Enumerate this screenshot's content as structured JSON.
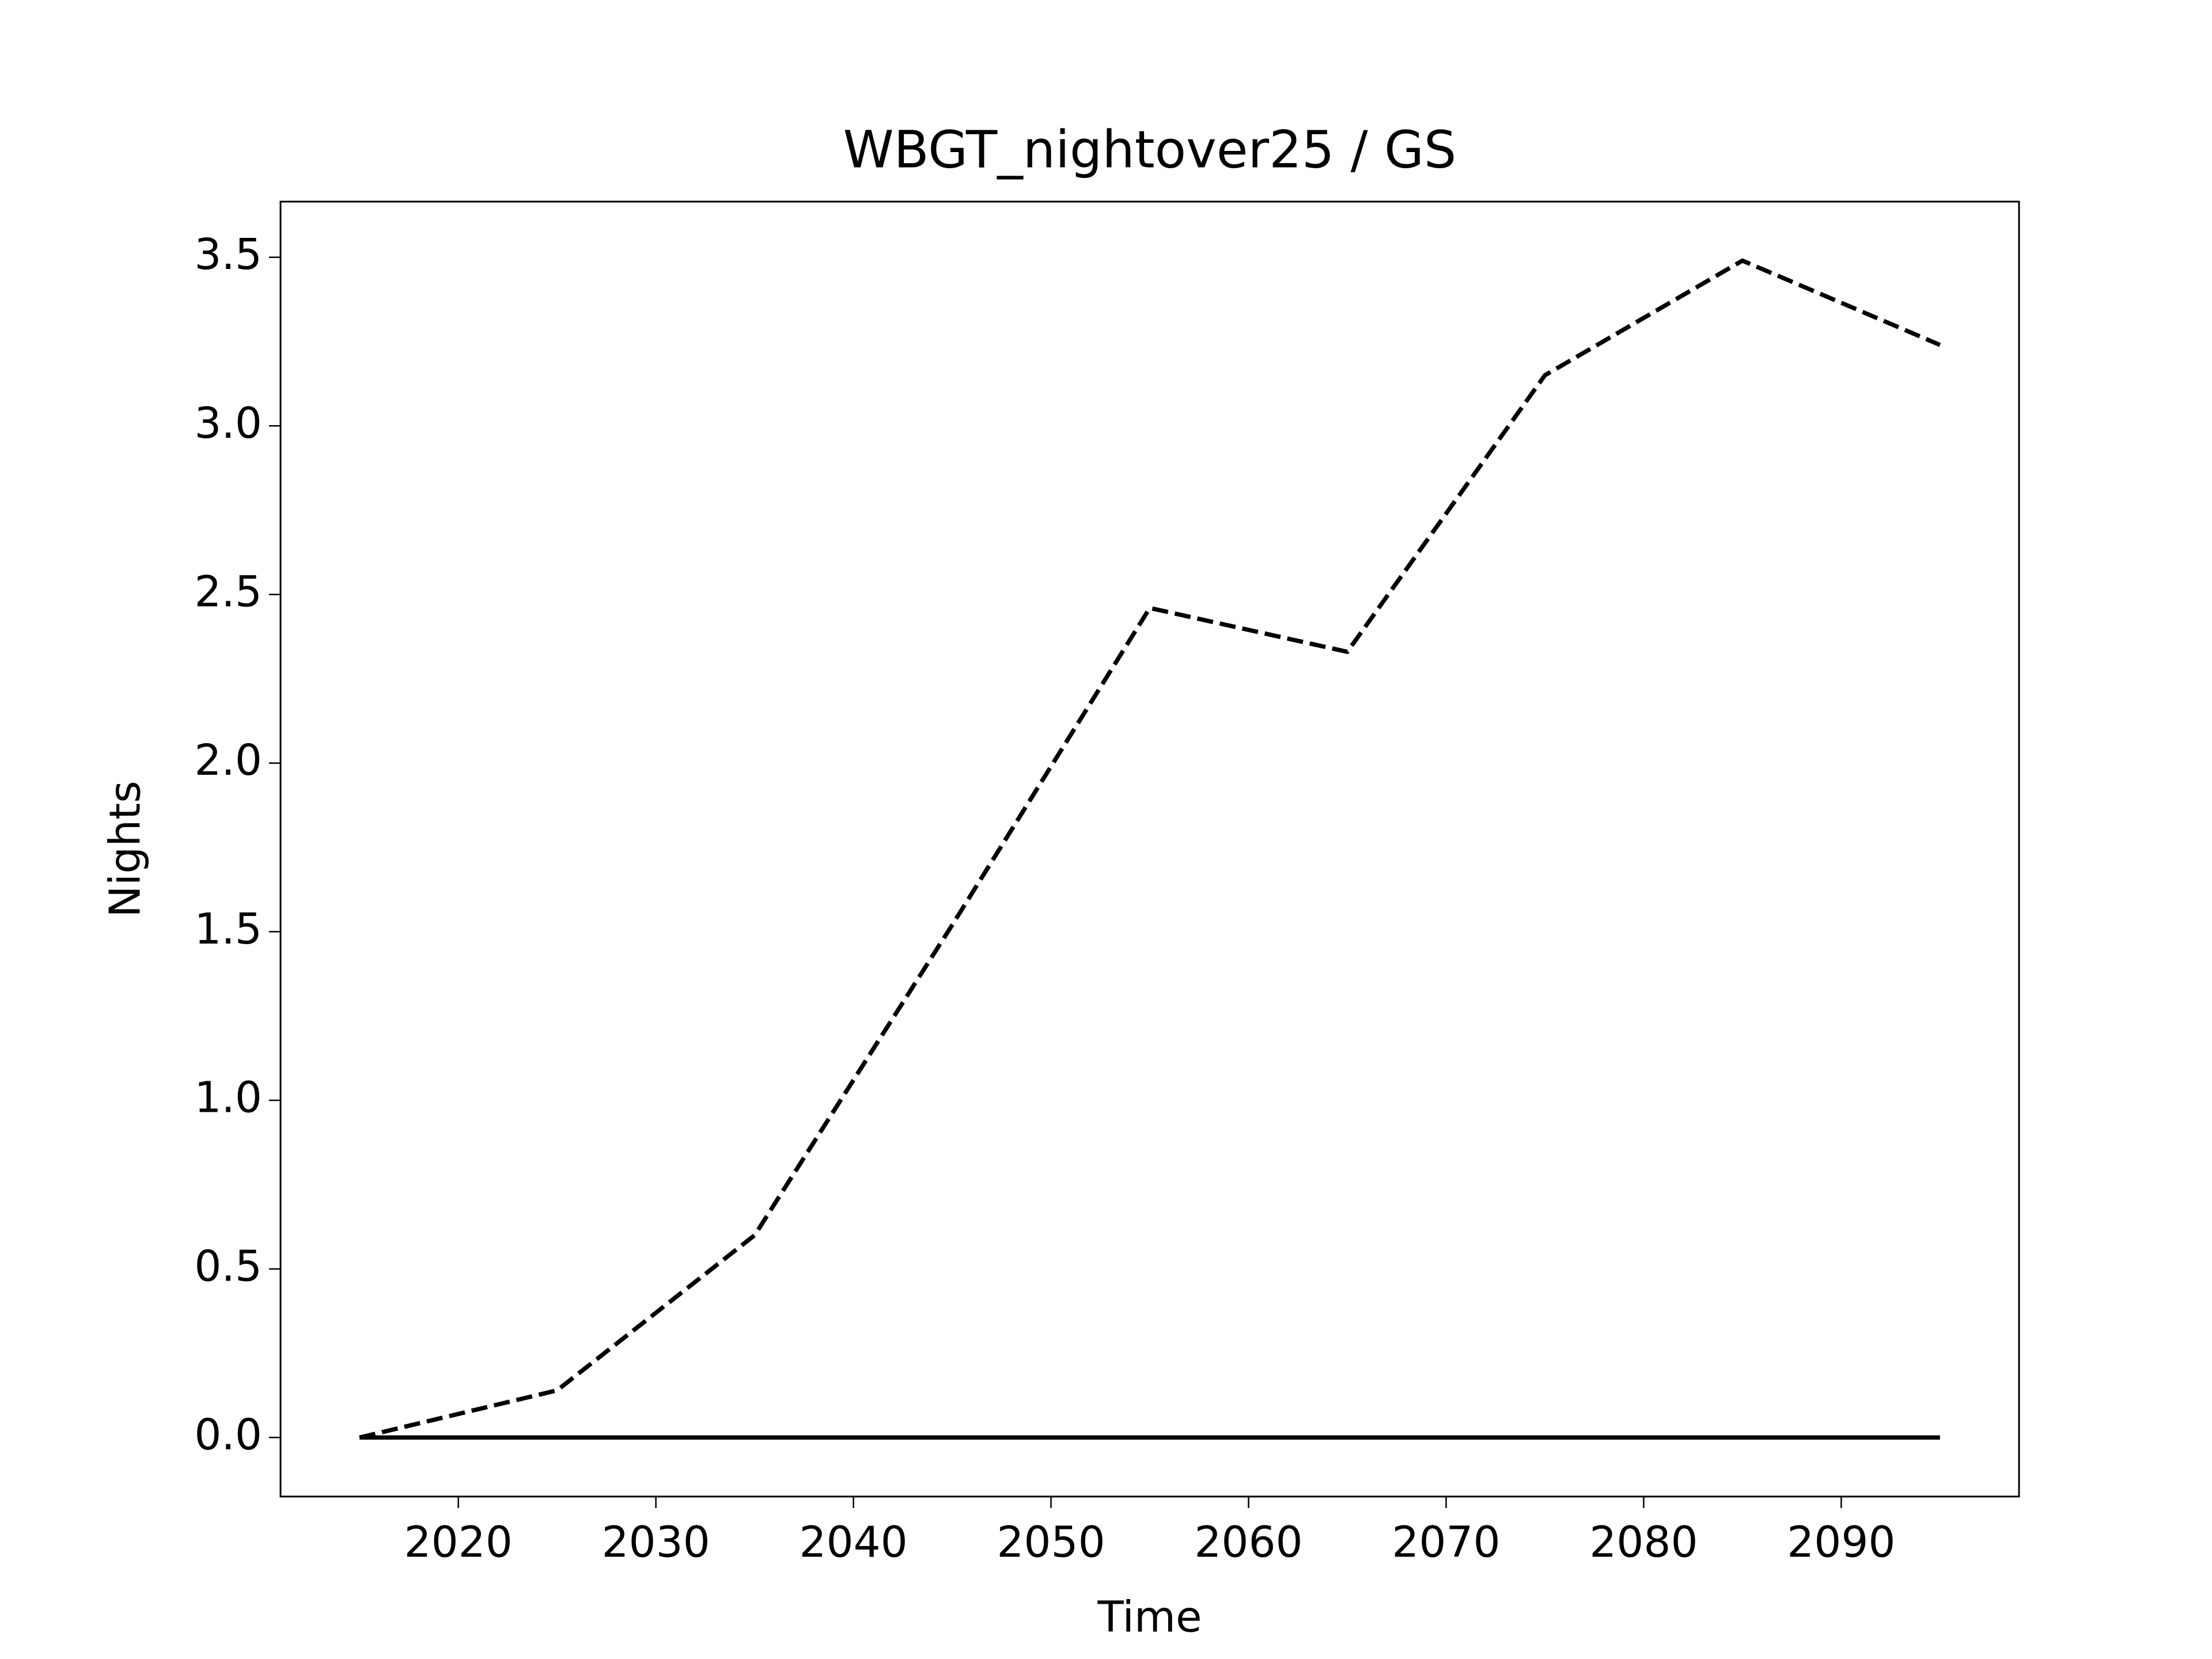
{
  "chart_data": {
    "type": "line",
    "title": "WBGT_nightover25 / GS",
    "xlabel": "Time",
    "ylabel": "Nights",
    "x": [
      2015,
      2025,
      2035,
      2045,
      2055,
      2065,
      2075,
      2085,
      2095
    ],
    "series": [
      {
        "color": "#000000",
        "linestyle": "solid",
        "values": [
          0,
          0,
          0,
          0,
          0,
          0,
          0,
          0,
          0
        ]
      },
      {
        "color": "#000000",
        "linestyle": "dashed",
        "values": [
          0,
          0.14,
          0.6,
          1.52,
          2.46,
          2.33,
          3.15,
          3.49,
          3.24
        ]
      }
    ],
    "xlim": [
      2011,
      2099
    ],
    "ylim": [
      -0.175,
      3.665
    ],
    "xticks": [
      2020,
      2030,
      2040,
      2050,
      2060,
      2070,
      2080,
      2090
    ],
    "yticks": [
      {
        "value": 0,
        "label": "0.0"
      },
      {
        "value": 0.5,
        "label": "0.5"
      },
      {
        "value": 1,
        "label": "1.0"
      },
      {
        "value": 1.5,
        "label": "1.5"
      },
      {
        "value": 2,
        "label": "2.0"
      },
      {
        "value": 2.5,
        "label": "2.5"
      },
      {
        "value": 3,
        "label": "3.0"
      },
      {
        "value": 3.5,
        "label": "3.5"
      }
    ],
    "grid": false
  }
}
